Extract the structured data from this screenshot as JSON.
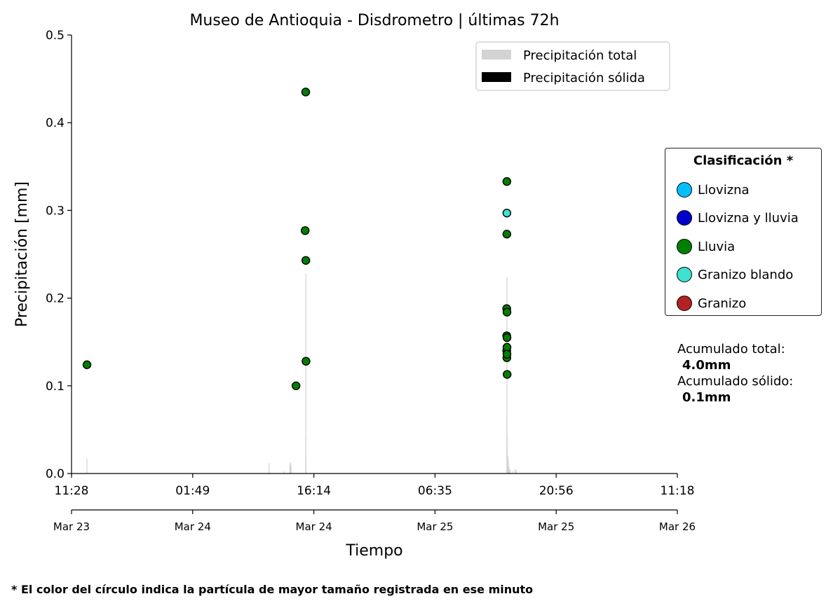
{
  "chart_data": {
    "type": "scatter",
    "title": "Museo de Antioquia - Disdrometro  |  últimas 72h",
    "xlabel": "Tiempo",
    "ylabel": "Precipitación [mm]",
    "ylim": [
      0,
      0.5
    ],
    "yticks": [
      "0.0",
      "0.1",
      "0.2",
      "0.3",
      "0.4",
      "0.5"
    ],
    "xlim": [
      "2024-03-23 11:28",
      "2024-03-26 11:18"
    ],
    "xticks": [
      {
        "time": "11:28",
        "date": "Mar 23"
      },
      {
        "time": "01:49",
        "date": "Mar 24"
      },
      {
        "time": "16:14",
        "date": "Mar 24"
      },
      {
        "time": "06:35",
        "date": "Mar 25"
      },
      {
        "time": "20:56",
        "date": "Mar 25"
      },
      {
        "time": "11:18",
        "date": "Mar 26"
      }
    ],
    "grid": false,
    "legend": {
      "placement": "top-right",
      "entries": [
        {
          "label": "Precipitación total",
          "color": "#d3d3d3"
        },
        {
          "label": "Precipitación sólida",
          "color": "#000000"
        }
      ]
    },
    "bars_total": [
      {
        "x": "2024-03-23 13:18",
        "y": 0.017
      },
      {
        "x": "2024-03-24 10:54",
        "y": 0.012
      },
      {
        "x": "2024-03-24 12:39",
        "y": 0.003
      },
      {
        "x": "2024-03-24 13:21",
        "y": 0.011
      },
      {
        "x": "2024-03-24 13:27",
        "y": 0.013
      },
      {
        "x": "2024-03-24 13:31",
        "y": 0.008
      },
      {
        "x": "2024-03-24 15:13",
        "y": 0.004
      },
      {
        "x": "2024-03-24 15:14",
        "y": 0.044
      },
      {
        "x": "2024-03-24 15:15",
        "y": 0.228
      },
      {
        "x": "2024-03-24 15:16",
        "y": 0.018
      },
      {
        "x": "2024-03-25 15:04",
        "y": 0.006
      },
      {
        "x": "2024-03-25 15:05",
        "y": 0.064
      },
      {
        "x": "2024-03-25 15:06",
        "y": 0.224
      },
      {
        "x": "2024-03-25 15:07",
        "y": 0.045
      },
      {
        "x": "2024-03-25 15:08",
        "y": 0.028
      },
      {
        "x": "2024-03-25 15:10",
        "y": 0.015
      },
      {
        "x": "2024-03-25 15:12",
        "y": 0.02
      },
      {
        "x": "2024-03-25 15:14",
        "y": 0.017
      },
      {
        "x": "2024-03-25 15:16",
        "y": 0.012
      },
      {
        "x": "2024-03-25 15:20",
        "y": 0.008
      },
      {
        "x": "2024-03-25 15:24",
        "y": 0.005
      },
      {
        "x": "2024-03-25 15:30",
        "y": 0.004
      },
      {
        "x": "2024-03-25 15:48",
        "y": 0.003
      },
      {
        "x": "2024-03-25 16:05",
        "y": 0.005
      },
      {
        "x": "2024-03-25 16:12",
        "y": 0.004
      }
    ],
    "bars_solid": [],
    "points": [
      {
        "x": "2024-03-23 13:18",
        "y": 0.124,
        "class": "Lluvia"
      },
      {
        "x": "2024-03-24 14:05",
        "y": 0.1,
        "class": "Lluvia"
      },
      {
        "x": "2024-03-24 15:10",
        "y": 0.277,
        "class": "Lluvia"
      },
      {
        "x": "2024-03-24 15:14",
        "y": 0.435,
        "class": "Lluvia"
      },
      {
        "x": "2024-03-24 15:15",
        "y": 0.243,
        "class": "Lluvia"
      },
      {
        "x": "2024-03-24 15:16",
        "y": 0.128,
        "class": "Lluvia"
      },
      {
        "x": "2024-03-25 15:04",
        "y": 0.188,
        "class": "Lluvia"
      },
      {
        "x": "2024-03-25 15:04",
        "y": 0.157,
        "class": "Lluvia"
      },
      {
        "x": "2024-03-25 15:04",
        "y": 0.14,
        "class": "Lluvia"
      },
      {
        "x": "2024-03-25 15:05",
        "y": 0.132,
        "class": "Lluvia"
      },
      {
        "x": "2024-03-25 15:05",
        "y": 0.333,
        "class": "Lluvia"
      },
      {
        "x": "2024-03-25 15:05",
        "y": 0.297,
        "class": "Granizo blando"
      },
      {
        "x": "2024-03-25 15:05",
        "y": 0.273,
        "class": "Lluvia"
      },
      {
        "x": "2024-03-25 15:06",
        "y": 0.184,
        "class": "Lluvia"
      },
      {
        "x": "2024-03-25 15:06",
        "y": 0.155,
        "class": "Lluvia"
      },
      {
        "x": "2024-03-25 15:06",
        "y": 0.144,
        "class": "Lluvia"
      },
      {
        "x": "2024-03-25 15:06",
        "y": 0.136,
        "class": "Lluvia"
      },
      {
        "x": "2024-03-25 15:07",
        "y": 0.113,
        "class": "Lluvia"
      }
    ]
  },
  "classification": {
    "title": "Clasificación *",
    "items": [
      {
        "label": "Llovizna",
        "color": "#00bfff"
      },
      {
        "label": "Llovizna y lluvia",
        "color": "#0000cd"
      },
      {
        "label": "Lluvia",
        "color": "#008000"
      },
      {
        "label": "Granizo blando",
        "color": "#40e0d0"
      },
      {
        "label": "Granizo",
        "color": "#b22222"
      }
    ]
  },
  "accum": {
    "total_label": "Acumulado total:",
    "total_value": "4.0mm",
    "solid_label": "Acumulado sólido:",
    "solid_value": "0.1mm"
  },
  "footnote": "* El color del círculo indica la partícula de mayor tamaño registrada en ese minuto"
}
